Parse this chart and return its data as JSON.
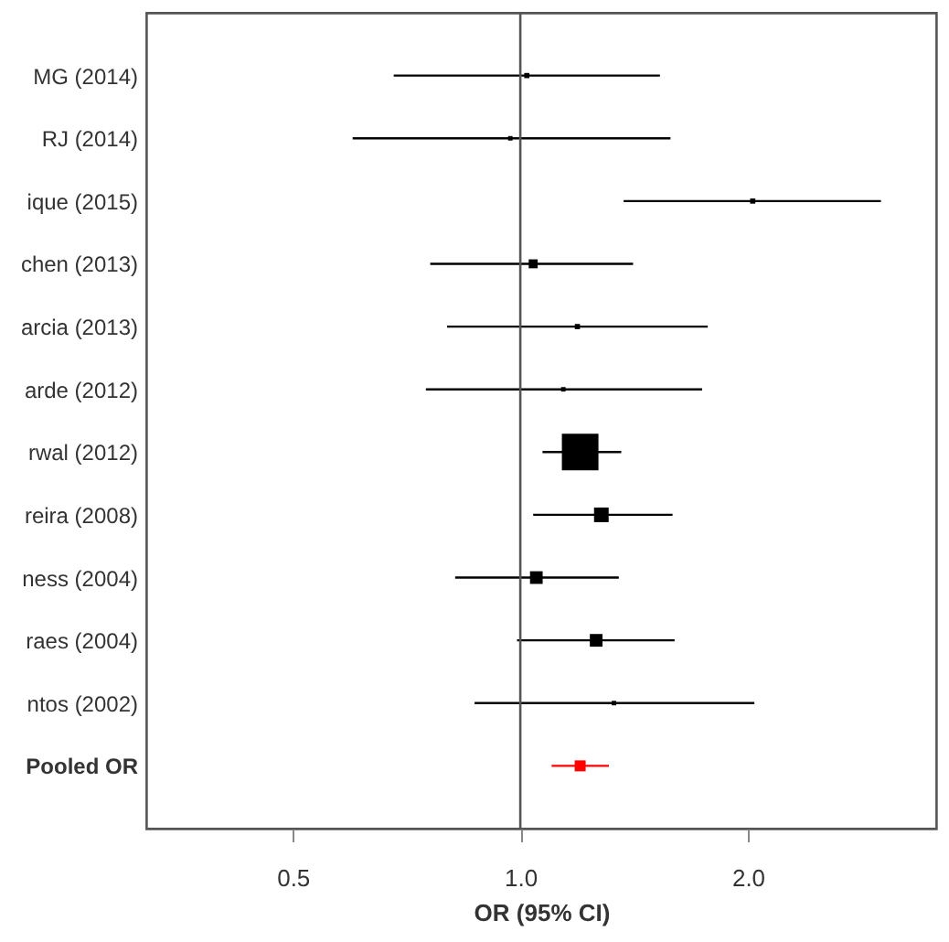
{
  "chart_data": {
    "type": "bubble",
    "orientation": "horizontal",
    "xlabel": "OR (95% CI)",
    "log": "x",
    "marker": "square",
    "grid": false,
    "categories": [
      "MG (2014)",
      "RJ (2014)",
      "ique (2015)",
      "chen (2013)",
      "arcia (2013)",
      "arde (2012)",
      "rwal (2012)",
      "reira (2008)",
      "ness (2004)",
      "raes (2004)",
      "ntos (2002)",
      "Pooled OR"
    ],
    "xlim": [
      0.32,
      3.55
    ],
    "xticks": [
      0.5,
      {
        "value": 1,
        "label": "1.0"
      },
      {
        "value": 2,
        "label": "2.0"
      }
    ],
    "ref_lines": [
      {
        "axis": "x",
        "value": 1,
        "color": "#555555"
      }
    ],
    "series": [
      {
        "color": "#000000",
        "values": [
          1.02,
          0.97,
          2.03,
          1.04,
          1.19,
          1.14,
          1.2,
          1.28,
          1.05,
          1.26,
          1.33,
          null
        ],
        "errors": [
          [
            0.68,
            1.53
          ],
          [
            0.6,
            1.58
          ],
          [
            1.37,
            3.0
          ],
          [
            0.76,
            1.41
          ],
          [
            0.8,
            1.77
          ],
          [
            0.75,
            1.74
          ],
          [
            1.07,
            1.36
          ],
          [
            1.04,
            1.59
          ],
          [
            0.82,
            1.35
          ],
          [
            0.99,
            1.6
          ],
          [
            0.87,
            2.04
          ],
          null
        ],
        "sizes": [
          0.02,
          0.015,
          0.02,
          0.06,
          0.02,
          0.015,
          1,
          0.16,
          0.12,
          0.12,
          0.015,
          null
        ]
      },
      {
        "color": "#ff0000",
        "values": [
          null,
          null,
          null,
          null,
          null,
          null,
          null,
          null,
          null,
          null,
          null,
          1.2
        ],
        "errors": [
          null,
          null,
          null,
          null,
          null,
          null,
          null,
          null,
          null,
          null,
          null,
          [
            1.1,
            1.31
          ]
        ],
        "sizes": [
          null,
          null,
          null,
          null,
          null,
          null,
          null,
          null,
          null,
          null,
          null,
          0.09
        ]
      }
    ]
  }
}
